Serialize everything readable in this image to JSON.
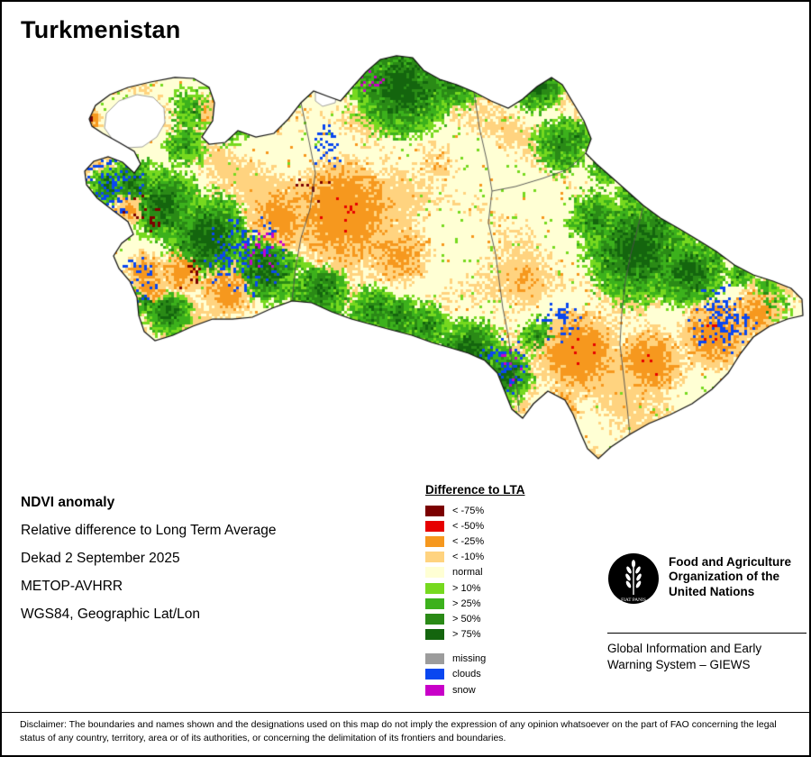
{
  "title": "Turkmenistan",
  "info": {
    "heading": "NDVI anomaly",
    "line1": "Relative difference to Long Term Average",
    "line2": "Dekad 2 September 2025",
    "line3": "METOP-AVHRR",
    "line4": "WGS84, Geographic Lat/Lon"
  },
  "legend": {
    "title": "Difference to LTA",
    "items": [
      {
        "label": "< -75%",
        "color": "#7B0000"
      },
      {
        "label": "< -50%",
        "color": "#E60000"
      },
      {
        "label": "< -25%",
        "color": "#F6981E"
      },
      {
        "label": "< -10%",
        "color": "#FFD37F"
      },
      {
        "label": "normal",
        "color": "#FFFFD4"
      },
      {
        "label": "> 10%",
        "color": "#76D91F"
      },
      {
        "label": "> 25%",
        "color": "#3CB11C"
      },
      {
        "label": "> 50%",
        "color": "#2A8A16"
      },
      {
        "label": "> 75%",
        "color": "#14650E"
      }
    ],
    "extra_items": [
      {
        "label": "missing",
        "color": "#9C9C9C"
      },
      {
        "label": "clouds",
        "color": "#0A47F0"
      },
      {
        "label": "snow",
        "color": "#C800C8"
      }
    ]
  },
  "org": {
    "logo_motto": "FIAT PANIS",
    "name": "Food and Agriculture Organization of the United Nations",
    "system": "Global Information and Early Warning System – GIEWS"
  },
  "disclaimer": "Disclaimer: The boundaries and names shown and the designations used on this map do not imply the expression of any opinion whatsoever on the part of FAO concerning the legal status of any country, territory, area or of its authorities, or concerning the delimitation of its frontiers and boundaries."
}
